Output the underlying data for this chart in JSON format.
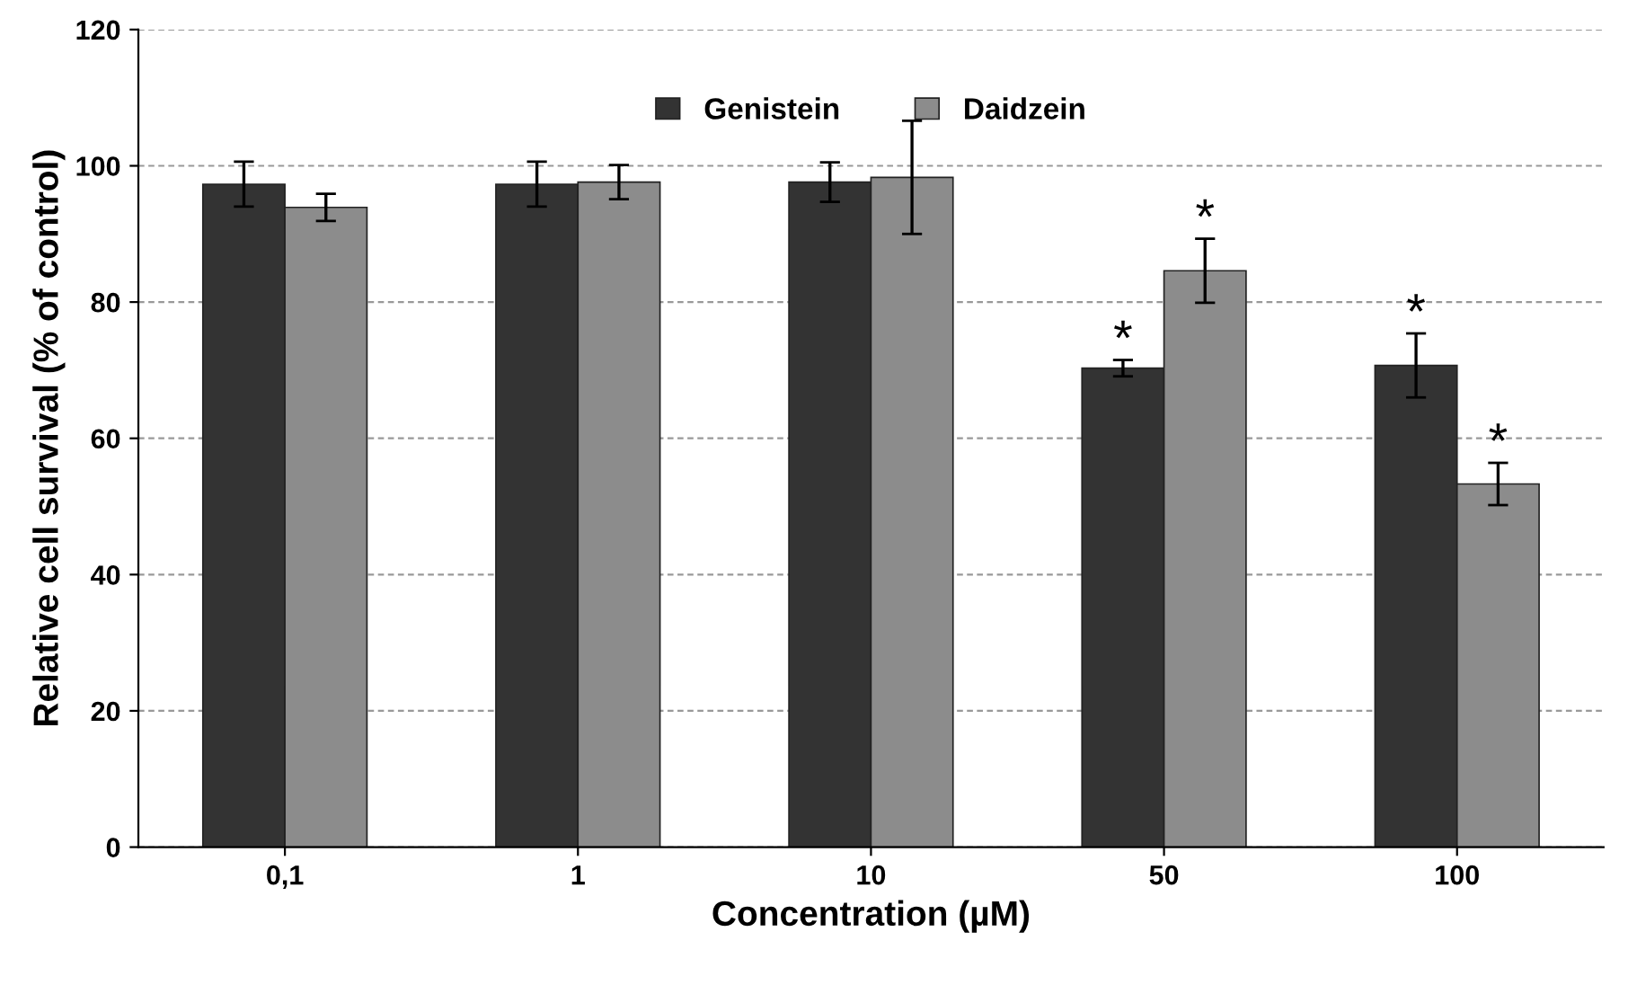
{
  "chart_data": {
    "type": "bar",
    "xlabel": "Concentration (µM)",
    "ylabel": "Relative cell survival (% of control)",
    "categories": [
      "0,1",
      "1",
      "10",
      "50",
      "100"
    ],
    "series": [
      {
        "name": "Genistein",
        "color": "#333333",
        "values": [
          97.3,
          97.3,
          97.6,
          70.3,
          70.7
        ],
        "errors": [
          3.3,
          3.3,
          2.9,
          1.2,
          4.7
        ]
      },
      {
        "name": "Daidzein",
        "color": "#8c8c8c",
        "values": [
          93.9,
          97.6,
          98.3,
          84.6,
          53.3
        ],
        "errors": [
          2.0,
          2.5,
          8.3,
          4.7,
          3.1
        ]
      }
    ],
    "annotations": [
      {
        "text": "*",
        "x": "50",
        "y": 70.3
      },
      {
        "text": "*",
        "x": "50",
        "y": 84.6
      },
      {
        "text": "*",
        "x": "100",
        "y": 70.7
      },
      {
        "text": "*",
        "x": "100",
        "y": 53.3
      }
    ],
    "ylim": [
      0,
      120
    ],
    "yticks": [
      0,
      20,
      40,
      60,
      80,
      100,
      120
    ],
    "grid": "y",
    "legend": "top"
  }
}
